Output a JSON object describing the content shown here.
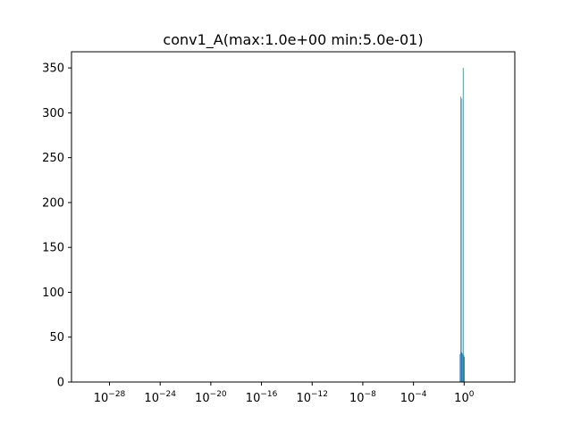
{
  "chart_data": {
    "type": "bar",
    "title": "conv1_A(max:1.0e+00 min:5.0e-01)",
    "xlabel": "",
    "ylabel": "",
    "x_scale": "log",
    "xlim": [
      1e-31,
      10000
    ],
    "ylim": [
      0,
      368
    ],
    "x_ticks": [
      {
        "value": 1e-28,
        "base": "10",
        "exp": "−28"
      },
      {
        "value": 1e-24,
        "base": "10",
        "exp": "−24"
      },
      {
        "value": 1e-20,
        "base": "10",
        "exp": "−20"
      },
      {
        "value": 1e-16,
        "base": "10",
        "exp": "−16"
      },
      {
        "value": 1e-12,
        "base": "10",
        "exp": "−12"
      },
      {
        "value": 1e-08,
        "base": "10",
        "exp": "−8"
      },
      {
        "value": 0.0001,
        "base": "10",
        "exp": "−4"
      },
      {
        "value": 1,
        "base": "10",
        "exp": "0"
      }
    ],
    "y_ticks": [
      0,
      50,
      100,
      150,
      200,
      250,
      300,
      350
    ],
    "bars": [
      {
        "x0": 0.45,
        "x1": 0.5,
        "value": 31
      },
      {
        "x0": 0.5,
        "x1": 0.56,
        "value": 318
      },
      {
        "x0": 0.56,
        "x1": 0.63,
        "value": 33
      },
      {
        "x0": 0.63,
        "x1": 0.7,
        "value": 316
      },
      {
        "x0": 0.7,
        "x1": 0.79,
        "value": 32
      },
      {
        "x0": 0.79,
        "x1": 0.89,
        "value": 350
      },
      {
        "x0": 0.89,
        "x1": 1.0,
        "value": 30
      },
      {
        "x0": 1.0,
        "x1": 1.12,
        "value": 28
      }
    ],
    "colors": {
      "bar": "#1f77b4",
      "bar_peak": "#1a7a6e",
      "axes": "#000000"
    },
    "grid": false,
    "legend": "none"
  }
}
